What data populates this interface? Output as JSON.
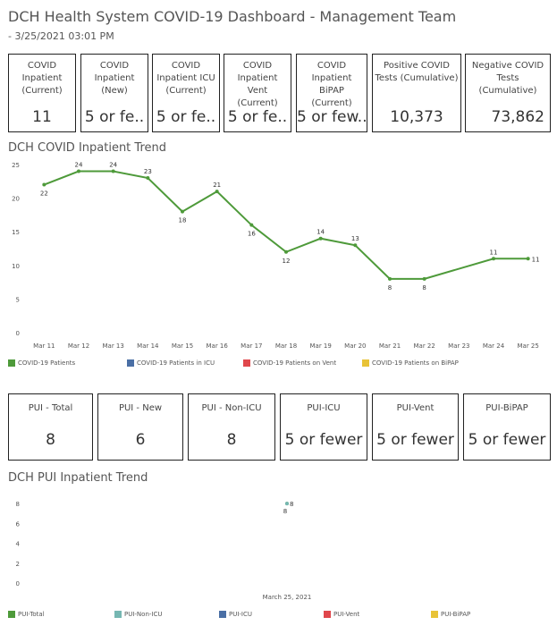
{
  "header": {
    "title": "DCH Health System COVID-19 Dashboard - Management Team",
    "subtitle": "- 3/25/2021 03:01 PM"
  },
  "kpi_cards": [
    {
      "label": "COVID Inpatient (Current)",
      "value": "11"
    },
    {
      "label": "COVID Inpatient (New)",
      "value": "5 or fe.."
    },
    {
      "label": "COVID Inpatient ICU (Current)",
      "value": "5 or fe.."
    },
    {
      "label": "COVID Inpatient Vent (Current)",
      "value": "5 or fe.."
    },
    {
      "label": "COVID Inpatient BiPAP (Current)",
      "value": "5 or few.."
    },
    {
      "label": "Positive COVID Tests (Cumulative)",
      "value": "10,373"
    },
    {
      "label": "Negative COVID Tests (Cumulative)",
      "value": "73,862"
    }
  ],
  "pui_cards": [
    {
      "label": "PUI - Total",
      "value": "8"
    },
    {
      "label": "PUI - New",
      "value": "6"
    },
    {
      "label": "PUI - Non-ICU",
      "value": "8"
    },
    {
      "label": "PUI-ICU",
      "value": "5 or fewer"
    },
    {
      "label": "PUI-Vent",
      "value": "5 or fewer"
    },
    {
      "label": "PUI-BiPAP",
      "value": "5 or fewer"
    }
  ],
  "chart_data": [
    {
      "type": "line",
      "title": "DCH COVID Inpatient Trend",
      "categories": [
        "Mar 11",
        "Mar 12",
        "Mar 13",
        "Mar 14",
        "Mar 15",
        "Mar 16",
        "Mar 17",
        "Mar 18",
        "Mar 19",
        "Mar 20",
        "Mar 21",
        "Mar 22",
        "Mar 23",
        "Mar 24",
        "Mar 25"
      ],
      "series": [
        {
          "name": "COVID-19 Patients",
          "color": "#4e9a3a",
          "values": [
            22,
            24,
            24,
            23,
            18,
            21,
            16,
            12,
            14,
            13,
            8,
            8,
            null,
            11,
            11
          ],
          "labels": [
            "22",
            "24",
            "24",
            "23",
            "18",
            "21",
            "16",
            "12",
            "14",
            "13",
            "8",
            "8",
            "",
            "11",
            "11"
          ]
        }
      ],
      "ylim": [
        0,
        25
      ],
      "yticks": [
        "0",
        "5",
        "10",
        "15",
        "20",
        "25"
      ],
      "grid": false,
      "legend": [
        {
          "name": "COVID-19 Patients",
          "color": "#4e9a3a"
        },
        {
          "name": "COVID-19 Patients in ICU",
          "color": "#4a6fa5"
        },
        {
          "name": "COVID-19 Patients on Vent",
          "color": "#e0474c"
        },
        {
          "name": "COVID-19 Patients on BiPAP",
          "color": "#e8c337"
        }
      ],
      "legend_position": "bottom"
    },
    {
      "type": "scatter",
      "title": "DCH PUI Inpatient Trend",
      "categories": [
        "March 25, 2021"
      ],
      "series": [
        {
          "name": "PUI-Total",
          "color": "#4e9a3a",
          "values": [
            8
          ]
        },
        {
          "name": "PUI-Non-ICU",
          "color": "#76b7b2",
          "values": [
            8
          ]
        }
      ],
      "ylim": [
        0,
        9
      ],
      "yticks": [
        "0",
        "2",
        "4",
        "6",
        "8"
      ],
      "grid": false,
      "legend": [
        {
          "name": "PUI-Total",
          "color": "#4e9a3a"
        },
        {
          "name": "PUI-Non-ICU",
          "color": "#76b7b2"
        },
        {
          "name": "PUI-ICU",
          "color": "#4a6fa5"
        },
        {
          "name": "PUI-Vent",
          "color": "#e0474c"
        },
        {
          "name": "PUI-BiPAP",
          "color": "#e8c337"
        }
      ],
      "legend_position": "bottom"
    }
  ]
}
